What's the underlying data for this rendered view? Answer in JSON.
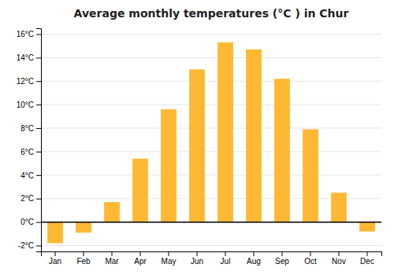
{
  "chart_data": {
    "type": "bar",
    "title": "Average monthly temperatures (°C ) in Chur",
    "categories": [
      "Jan",
      "Feb",
      "Mar",
      "Apr",
      "May",
      "Jun",
      "Jul",
      "Aug",
      "Sep",
      "Oct",
      "Nov",
      "Dec"
    ],
    "values": [
      -1.8,
      -0.9,
      1.7,
      5.4,
      9.6,
      13.0,
      15.3,
      14.7,
      12.2,
      7.9,
      2.5,
      -0.8
    ],
    "color": "#FFB833",
    "ylim": [
      -2.5,
      16.5
    ],
    "yticks": [
      {
        "value": -2,
        "label": "-2°C"
      },
      {
        "value": 0,
        "label": "0°C"
      },
      {
        "value": 2,
        "label": "2°C"
      },
      {
        "value": 4,
        "label": "4°C"
      },
      {
        "value": 6,
        "label": "6°C"
      },
      {
        "value": 8,
        "label": "8°C"
      },
      {
        "value": 10,
        "label": "10°C"
      },
      {
        "value": 12,
        "label": "12°C"
      },
      {
        "value": 14,
        "label": "14°C"
      },
      {
        "value": 16,
        "label": "16°C"
      }
    ],
    "grid": true
  }
}
